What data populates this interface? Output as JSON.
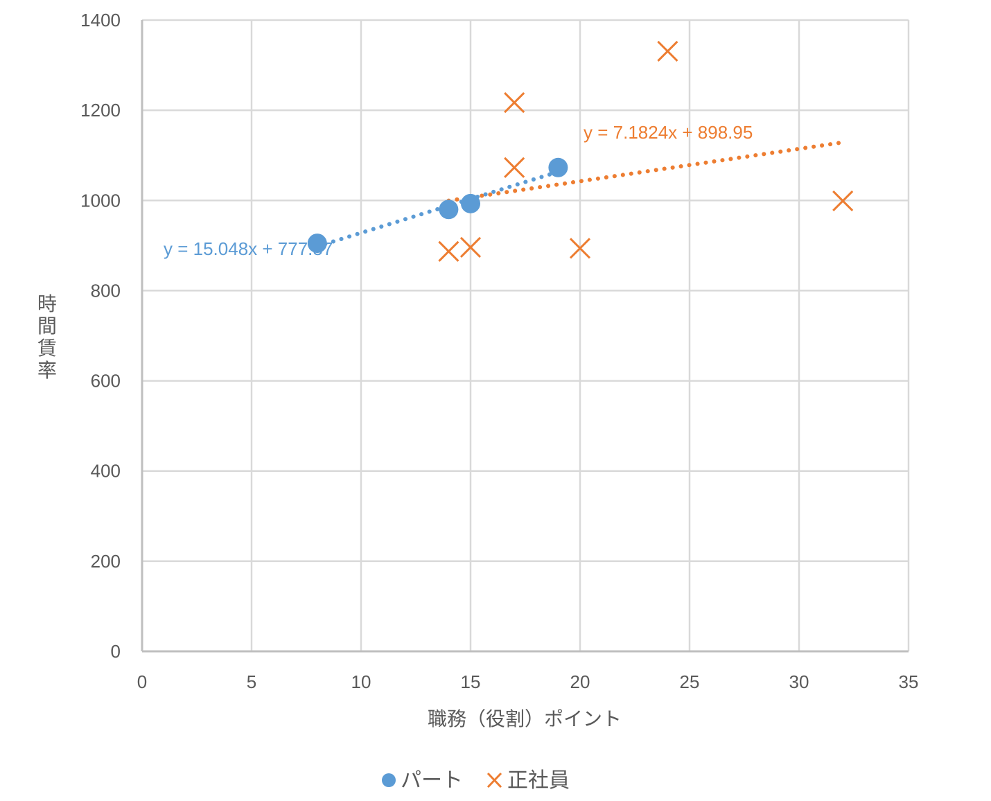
{
  "chart_data": {
    "type": "scatter",
    "title": "",
    "xlabel": "職務（役割）ポイント",
    "ylabel": "時間賃率",
    "xlim": [
      0,
      35
    ],
    "ylim": [
      0,
      1400
    ],
    "x_ticks": [
      0,
      5,
      10,
      15,
      20,
      25,
      30,
      35
    ],
    "y_ticks": [
      0,
      200,
      400,
      600,
      800,
      1000,
      1200,
      1400
    ],
    "grid": true,
    "legend_position": "bottom",
    "series": [
      {
        "name": "パート",
        "marker": "circle",
        "color": "#5B9BD5",
        "points": [
          [
            8,
            905
          ],
          [
            14,
            980
          ],
          [
            15,
            993
          ],
          [
            19,
            1073
          ]
        ],
        "trendline": {
          "type": "linear",
          "style": "dotted",
          "slope": 15.048,
          "intercept": 777.57,
          "x_range": [
            8,
            19
          ],
          "equation_label": "y = 15.048x + 777.57"
        }
      },
      {
        "name": "正社員",
        "marker": "x",
        "color": "#ED7D31",
        "points": [
          [
            14,
            887
          ],
          [
            15,
            896
          ],
          [
            17,
            1217
          ],
          [
            17,
            1073
          ],
          [
            20,
            894
          ],
          [
            24,
            1331
          ],
          [
            32,
            999
          ]
        ],
        "trendline": {
          "type": "linear",
          "style": "dotted",
          "slope": 7.1824,
          "intercept": 898.95,
          "x_range": [
            14,
            32
          ],
          "equation_label": "y = 7.1824x + 898.95"
        }
      }
    ]
  },
  "legend": {
    "items": [
      {
        "label": "パート",
        "icon": "circle-marker-icon"
      },
      {
        "label": "正社員",
        "icon": "x-marker-icon"
      }
    ]
  }
}
